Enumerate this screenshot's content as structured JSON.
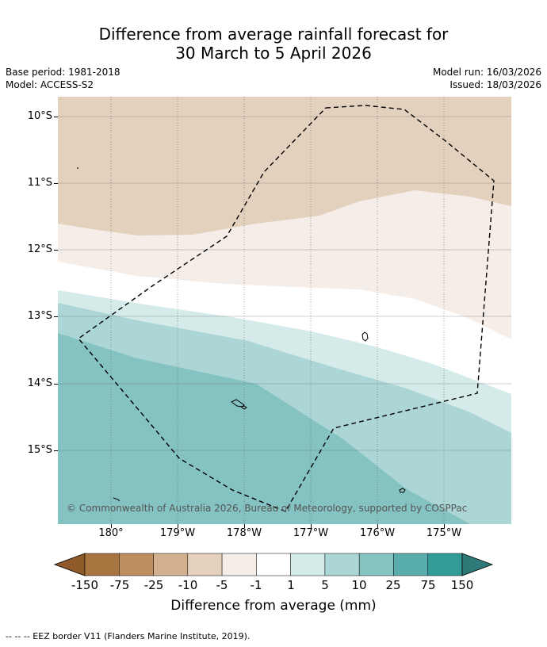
{
  "title_line1": "Difference from average rainfall forecast for",
  "title_line2": "30 March to 5 April 2026",
  "base_period": "Base period: 1981-2018",
  "model": "Model: ACCESS-S2",
  "model_run": "Model run: 16/03/2026",
  "issued": "Issued: 18/03/2026",
  "lat_labels": [
    "10°S",
    "11°S",
    "12°S",
    "13°S",
    "14°S",
    "15°S"
  ],
  "lon_labels": [
    "180°",
    "179°W",
    "178°W",
    "177°W",
    "176°W",
    "175°W"
  ],
  "copyright": "© Commonwealth of Australia 2026, Bureau of Meteorology, supported by COSPPac",
  "colorbar": {
    "labels": [
      "-150",
      "-75",
      "-25",
      "-10",
      "-5",
      "-1",
      "1",
      "5",
      "10",
      "25",
      "75",
      "150"
    ],
    "colors": [
      "#a87540",
      "#be9060",
      "#d3b08f",
      "#e3d0bd",
      "#f4ede8",
      "#ffffff",
      "#d5ebea",
      "#acd5d5",
      "#85c2c2",
      "#5aadad",
      "#339c98"
    ],
    "extend_low_color": "#8f5a2a",
    "extend_high_color": "#2d7a78",
    "title": "Difference from average (mm)"
  },
  "footnote": "-- -- -- EEZ border V11 (Flanders Marine Institute, 2019)."
}
